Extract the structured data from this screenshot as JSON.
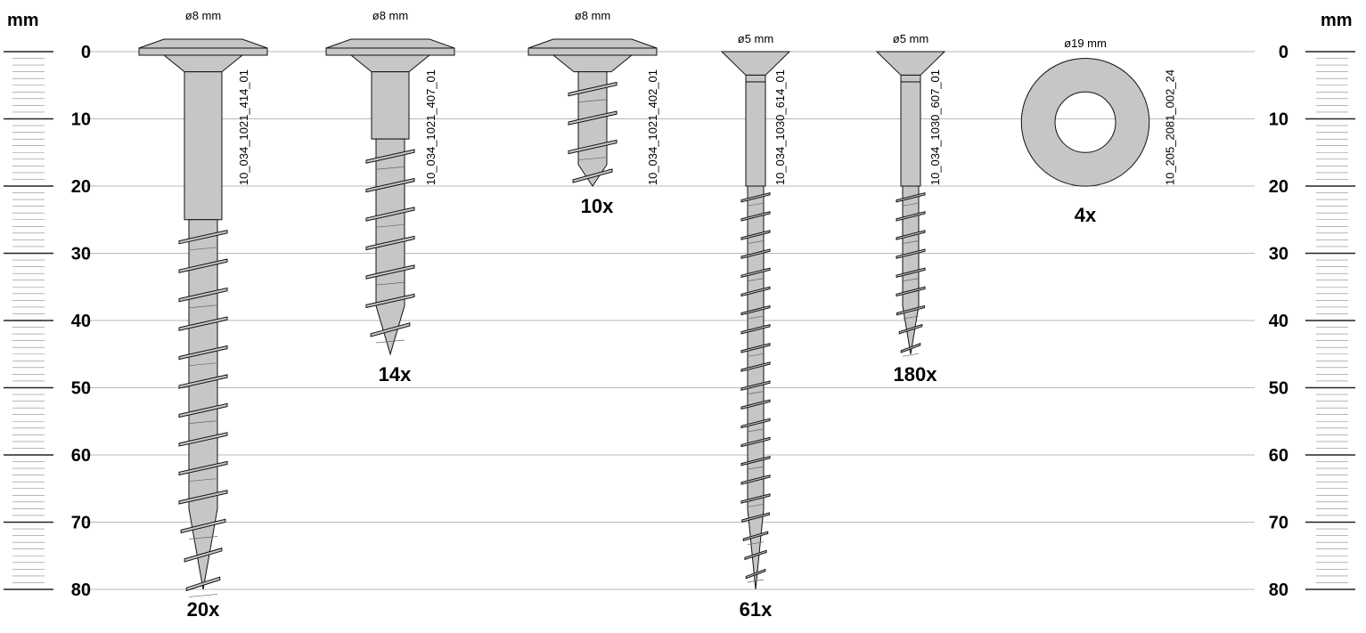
{
  "scale": {
    "unit_label": "mm",
    "ticks": [
      "0",
      "10",
      "20",
      "30",
      "40",
      "50",
      "60",
      "70",
      "80"
    ]
  },
  "items": [
    {
      "kind": "screw",
      "head": "flange",
      "diameter_label": "ø8 mm",
      "code": "10_034_1021_414_01",
      "quantity": "20x",
      "length_mm": 80,
      "shank_end_mm": 25
    },
    {
      "kind": "screw",
      "head": "flange",
      "diameter_label": "ø8 mm",
      "code": "10_034_1021_407_01",
      "quantity": "14x",
      "length_mm": 45,
      "shank_end_mm": 13
    },
    {
      "kind": "screw",
      "head": "flange",
      "diameter_label": "ø8 mm",
      "code": "10_034_1021_402_01",
      "quantity": "10x",
      "length_mm": 20,
      "shank_end_mm": 3
    },
    {
      "kind": "screw",
      "head": "countersunk",
      "diameter_label": "ø5 mm",
      "code": "10_034_1030_614_01",
      "quantity": "61x",
      "length_mm": 80,
      "shank_end_mm": 20
    },
    {
      "kind": "screw",
      "head": "countersunk",
      "diameter_label": "ø5 mm",
      "code": "10_034_1030_607_01",
      "quantity": "180x",
      "length_mm": 45,
      "shank_end_mm": 20
    },
    {
      "kind": "washer",
      "diameter_label": "ø19 mm",
      "code": "10_205_2081_002_24",
      "quantity": "4x",
      "outer_diameter_mm": 19,
      "inner_diameter_mm": 9
    }
  ],
  "colors": {
    "part_fill": "#c6c6c6",
    "part_stroke": "#111111",
    "gridline": "#b8b8b8",
    "ruler": "#8a8a8a"
  }
}
